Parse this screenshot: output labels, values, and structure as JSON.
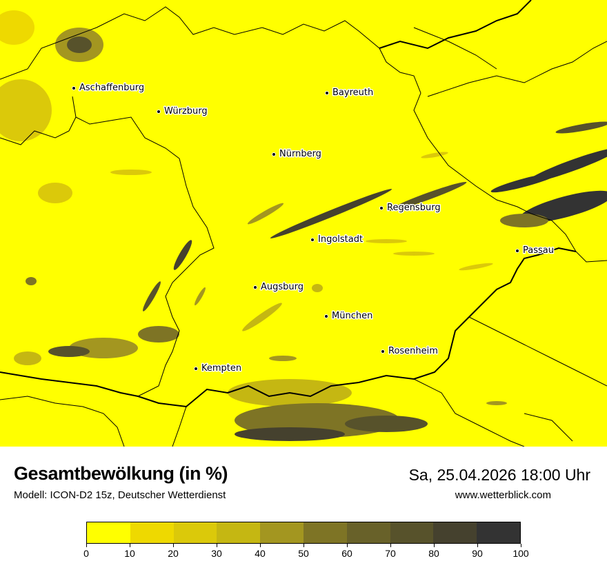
{
  "title": "Gesamtbewölkung (in %)",
  "subtitle": "Modell: ICON-D2 15z, Deutscher Wetterdienst",
  "datetime": "Sa, 25.04.2026 18:00 Uhr",
  "website": "www.wetterblick.com",
  "cities": [
    {
      "name": "Aschaffenburg"
    },
    {
      "name": "Würzburg"
    },
    {
      "name": "Bayreuth"
    },
    {
      "name": "Nürnberg"
    },
    {
      "name": "Regensburg"
    },
    {
      "name": "Ingolstadt"
    },
    {
      "name": "Passau"
    },
    {
      "name": "Augsburg"
    },
    {
      "name": "München"
    },
    {
      "name": "Rosenheim"
    },
    {
      "name": "Kempten"
    }
  ],
  "legend": {
    "ticks": [
      "0",
      "10",
      "20",
      "30",
      "40",
      "50",
      "60",
      "70",
      "80",
      "90",
      "100"
    ],
    "colors": [
      "#ffff00",
      "#eed900",
      "#dbc90a",
      "#c5b712",
      "#a39620",
      "#7e7425",
      "#686129",
      "#57522b",
      "#45412e",
      "#333333"
    ]
  }
}
